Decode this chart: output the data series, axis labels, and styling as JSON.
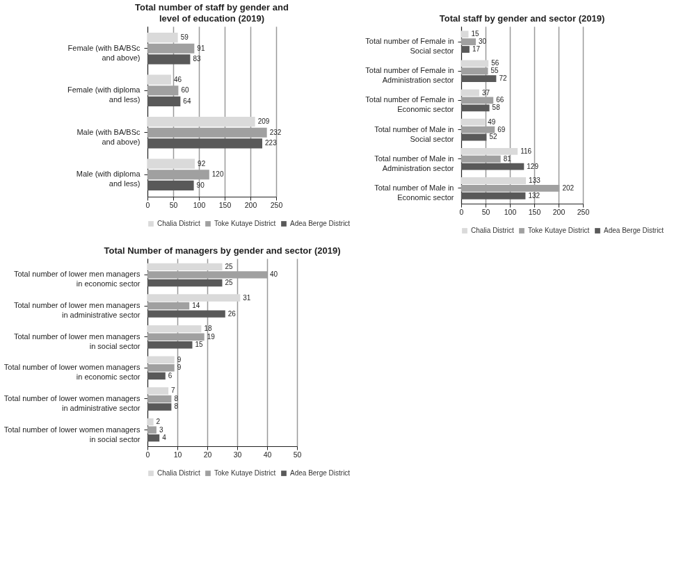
{
  "chart_data": [
    {
      "type": "bar",
      "orientation": "horizontal",
      "title": "Total number of staff by gender and level of education (2019)",
      "categories": [
        "Female (with BA/BSc and above)",
        "Female (with diploma and less)",
        "Male (with BA/BSc and above)",
        "Male (with diploma and less)"
      ],
      "series": [
        {
          "name": "Chalia District",
          "color": "#dadada",
          "values": [
            59,
            46,
            209,
            92
          ]
        },
        {
          "name": "Toke Kutaye District",
          "color": "#a0a0a0",
          "values": [
            91,
            60,
            232,
            120
          ]
        },
        {
          "name": "Adea Berge District",
          "color": "#595959",
          "values": [
            83,
            64,
            223,
            90
          ]
        }
      ],
      "xlim": [
        0,
        250
      ],
      "xticks": [
        0,
        50,
        100,
        150,
        200,
        250
      ],
      "grid": "x",
      "legend": "bottom",
      "data_labels": true
    },
    {
      "type": "bar",
      "orientation": "horizontal",
      "title": "Total staff by gender and sector (2019)",
      "categories": [
        "Total number of Female in Social sector",
        "Total number of Female in Administration sector",
        "Total number of Female in Economic sector",
        "Total number of Male in Social sector",
        "Total number of Male in Administration sector",
        "Total number of Male in Economic sector"
      ],
      "series": [
        {
          "name": "Chalia District",
          "color": "#dadada",
          "values": [
            15,
            56,
            37,
            49,
            116,
            133
          ]
        },
        {
          "name": "Toke Kutaye District",
          "color": "#a0a0a0",
          "values": [
            30,
            55,
            66,
            69,
            81,
            202
          ]
        },
        {
          "name": "Adea Berge District",
          "color": "#595959",
          "values": [
            17,
            72,
            58,
            52,
            129,
            132
          ]
        }
      ],
      "xlim": [
        0,
        250
      ],
      "xticks": [
        0,
        50,
        100,
        150,
        200,
        250
      ],
      "grid": "x",
      "legend": "bottom",
      "data_labels": true
    },
    {
      "type": "bar",
      "orientation": "horizontal",
      "title": "Total Number of managers by gender and sector (2019)",
      "categories": [
        "Total number of lower men managers in economic sector",
        "Total number of lower men managers in administrative sector",
        "Total number of lower men managers in social sector",
        "Total number of lower women managers in economic sector",
        "Total number of lower women managers in administrative sector",
        "Total number of lower women managers in social sector"
      ],
      "series": [
        {
          "name": "Chalia District",
          "color": "#dadada",
          "values": [
            25,
            31,
            18,
            9,
            7,
            2
          ]
        },
        {
          "name": "Toke Kutaye District",
          "color": "#a0a0a0",
          "values": [
            40,
            14,
            19,
            9,
            8,
            3
          ]
        },
        {
          "name": "Adea Berge District",
          "color": "#595959",
          "values": [
            25,
            26,
            15,
            6,
            8,
            4
          ]
        }
      ],
      "xlim": [
        0,
        50
      ],
      "xticks": [
        0,
        10,
        20,
        30,
        40,
        50
      ],
      "grid": "x",
      "legend": "bottom",
      "data_labels": true
    }
  ]
}
